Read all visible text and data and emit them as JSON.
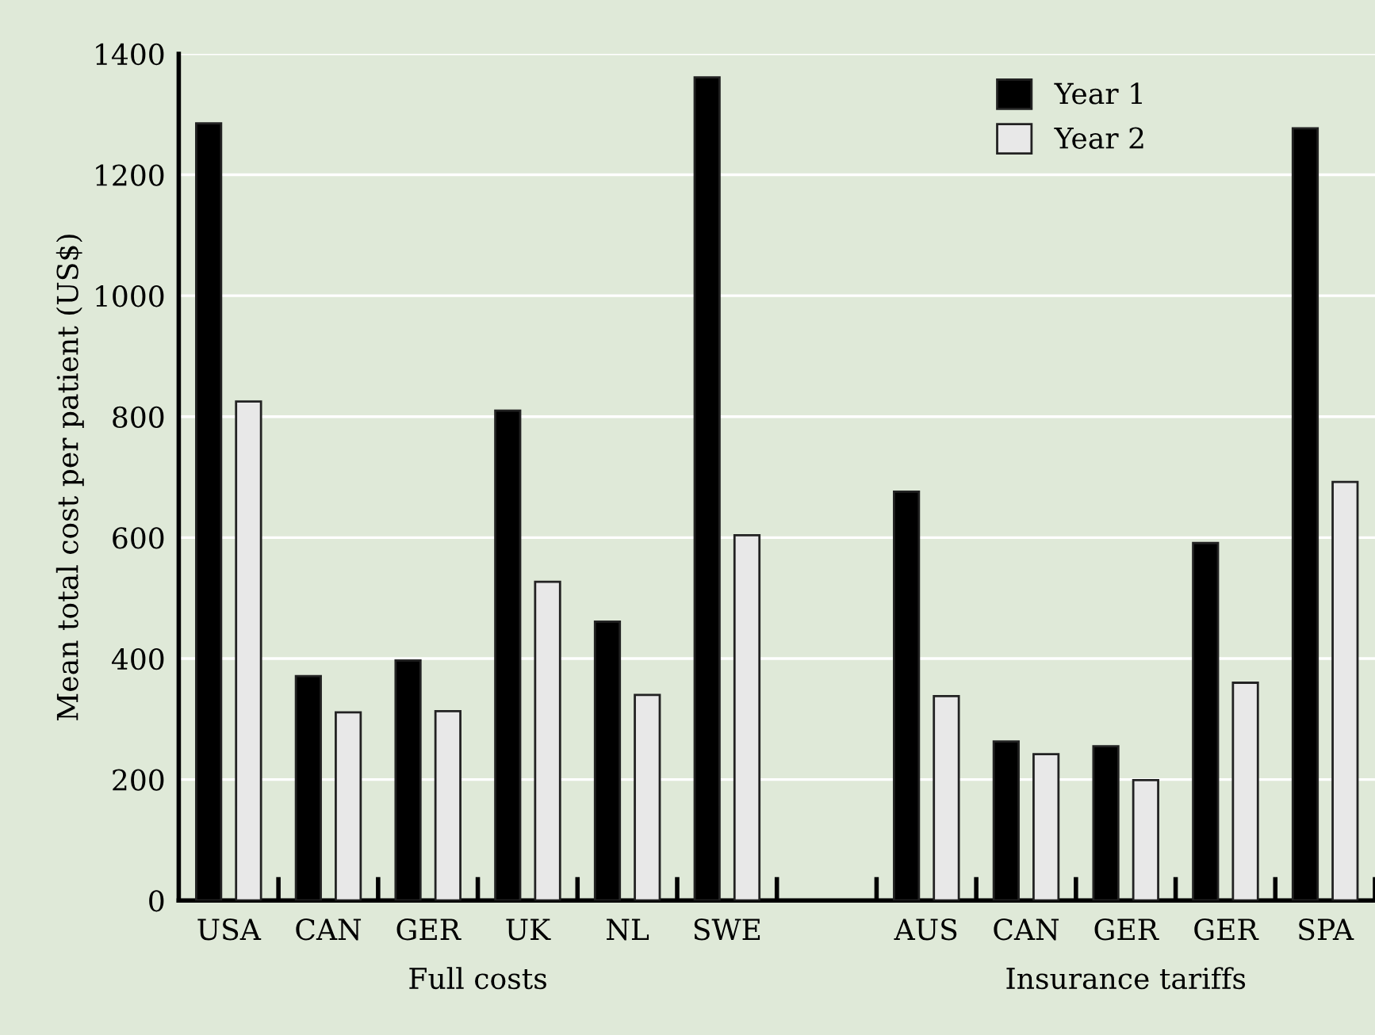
{
  "chart_data": {
    "type": "bar",
    "ylabel": "Mean total cost per patient (US$)",
    "categories": [
      "USA",
      "CAN",
      "GER",
      "UK",
      "NL",
      "SWE",
      null,
      "AUS",
      "CAN",
      "GER",
      "GER",
      "SPA"
    ],
    "series": [
      {
        "name": "Year 1",
        "color": "#000000",
        "values": [
          1285,
          371,
          397,
          810,
          461,
          1361,
          null,
          676,
          263,
          255,
          591,
          1277
        ]
      },
      {
        "name": "Year 2",
        "color": "#e8e8e8",
        "values": [
          825,
          311,
          313,
          527,
          340,
          604,
          null,
          338,
          242,
          199,
          360,
          692
        ]
      }
    ],
    "ylim": [
      0,
      1400
    ],
    "yticks": [
      0,
      200,
      400,
      600,
      800,
      1000,
      1200,
      1400
    ],
    "grid": "y",
    "legend": "top right",
    "annotations": [
      "Full costs",
      "Insurance tariffs"
    ]
  }
}
